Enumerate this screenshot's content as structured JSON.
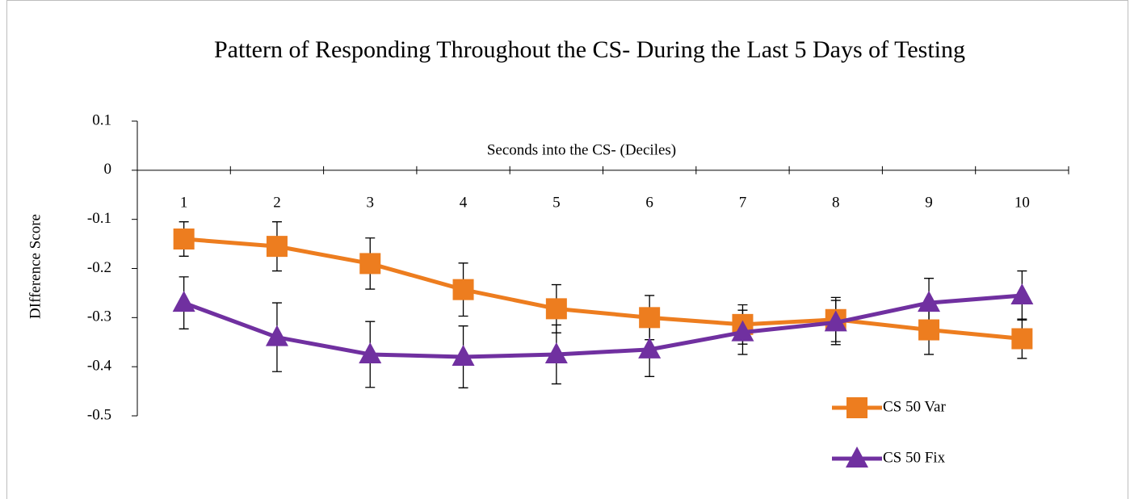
{
  "chart_data": {
    "type": "line",
    "title": "Pattern of Responding Throughout the CS- During the Last 5 Days of Testing",
    "x_label": "Seconds into the CS- (Deciles)",
    "y_label": "DIfference Score",
    "categories": [
      "1",
      "2",
      "3",
      "4",
      "5",
      "6",
      "7",
      "8",
      "9",
      "10"
    ],
    "series": [
      {
        "name": "CS 50 Var",
        "color": "#ed7d1f",
        "marker": "square",
        "values": [
          -0.14,
          -0.155,
          -0.19,
          -0.243,
          -0.282,
          -0.3,
          -0.314,
          -0.304,
          -0.325,
          -0.343
        ],
        "errors": [
          0.035,
          0.05,
          0.052,
          0.054,
          0.049,
          0.045,
          0.04,
          0.045,
          0.05,
          0.04
        ]
      },
      {
        "name": "CS 50 Fix",
        "color": "#7030a0",
        "marker": "triangle",
        "values": [
          -0.27,
          -0.34,
          -0.375,
          -0.38,
          -0.375,
          -0.365,
          -0.33,
          -0.31,
          -0.27,
          -0.255
        ],
        "errors": [
          0.053,
          0.07,
          0.067,
          0.063,
          0.06,
          0.055,
          0.045,
          0.045,
          0.05,
          0.05
        ]
      }
    ],
    "ylim": [
      -0.5,
      0.1
    ],
    "yticks": [
      0.1,
      0,
      -0.1,
      -0.2,
      -0.3,
      -0.4,
      -0.5
    ],
    "legend": "bottom-right"
  }
}
